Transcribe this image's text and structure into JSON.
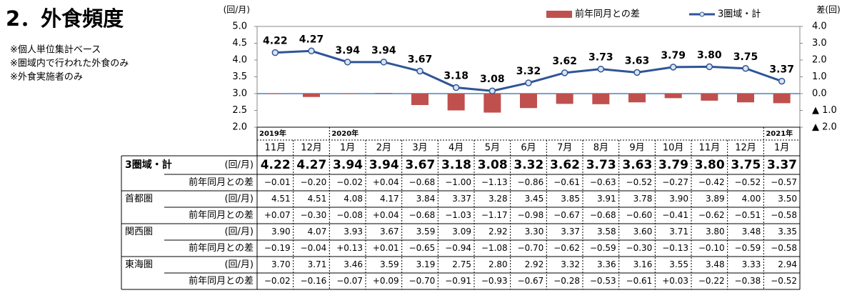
{
  "title": "2．外食頻度",
  "notes": [
    "※個人単位集計ベース",
    "※圏域内で行われた外食のみ",
    "※外食実施者のみ"
  ],
  "chart_data": {
    "type": "combo",
    "y_label": "(回/月)",
    "y2_label": "差(回)",
    "categories": [
      "11月",
      "12月",
      "1月",
      "2月",
      "3月",
      "4月",
      "5月",
      "6月",
      "7月",
      "8月",
      "9月",
      "10月",
      "11月",
      "12月",
      "1月"
    ],
    "years": [
      "2019年",
      null,
      "2020年",
      null,
      null,
      null,
      null,
      null,
      null,
      null,
      null,
      null,
      null,
      null,
      "2021年"
    ],
    "ylim": [
      2.0,
      5.0
    ],
    "yticks": [
      {
        "value": 2,
        "label": "2.0"
      },
      {
        "value": 2.5,
        "label": "2.5"
      },
      {
        "value": 3,
        "label": "3.0"
      },
      {
        "value": 3.5,
        "label": "3.5"
      },
      {
        "value": 4,
        "label": "4.0"
      },
      {
        "value": 4.5,
        "label": "4.5"
      },
      {
        "value": 5,
        "label": "5.0"
      }
    ],
    "y2lim": [
      -2.0,
      4.0
    ],
    "y2ticks": [
      {
        "value": -2,
        "label": "▲ 2.0"
      },
      {
        "value": -1,
        "label": "▲ 1.0"
      },
      {
        "value": 0,
        "label": "0.0"
      },
      {
        "value": 1,
        "label": "1.0"
      },
      {
        "value": 2,
        "label": "2.0"
      },
      {
        "value": 3,
        "label": "3.0"
      },
      {
        "value": 4,
        "label": "4.0"
      }
    ],
    "grid": false,
    "legend": "top-right",
    "series": [
      {
        "name": "前年同月との差",
        "type": "bar",
        "axis": "y2",
        "color": "#c0504d",
        "values": [
          -0.01,
          -0.2,
          -0.02,
          0.04,
          -0.68,
          -1.0,
          -1.13,
          -0.86,
          -0.61,
          -0.63,
          -0.52,
          -0.27,
          -0.42,
          -0.52,
          -0.57
        ]
      },
      {
        "name": "3圏域・計",
        "type": "line",
        "color": "#2f5597",
        "values": [
          4.22,
          4.27,
          3.94,
          3.94,
          3.67,
          3.18,
          3.08,
          3.32,
          3.62,
          3.73,
          3.63,
          3.79,
          3.8,
          3.75,
          3.37
        ],
        "value_labels": [
          "4.22",
          "4.27",
          "3.94",
          "3.94",
          "3.67",
          "3.18",
          "3.08",
          "3.32",
          "3.62",
          "3.73",
          "3.63",
          "3.79",
          "3.80",
          "3.75",
          "3.37"
        ]
      }
    ]
  },
  "table": {
    "rows": [
      {
        "label": "3圏域・計",
        "unit": "(回/月)",
        "values": [
          "4.22",
          "4.27",
          "3.94",
          "3.94",
          "3.67",
          "3.18",
          "3.08",
          "3.32",
          "3.62",
          "3.73",
          "3.63",
          "3.79",
          "3.80",
          "3.75",
          "3.37"
        ]
      },
      {
        "label": "前年同月との差",
        "values": [
          "−0.01",
          "−0.20",
          "−0.02",
          "+0.04",
          "−0.68",
          "−1.00",
          "−1.13",
          "−0.86",
          "−0.61",
          "−0.63",
          "−0.52",
          "−0.27",
          "−0.42",
          "−0.52",
          "−0.57"
        ]
      },
      {
        "label": "首都圏",
        "unit": "(回/月)",
        "values": [
          "4.51",
          "4.51",
          "4.08",
          "4.17",
          "3.84",
          "3.37",
          "3.28",
          "3.45",
          "3.85",
          "3.91",
          "3.78",
          "3.90",
          "3.89",
          "4.00",
          "3.50"
        ]
      },
      {
        "label": "前年同月との差",
        "values": [
          "+0.07",
          "−0.30",
          "−0.08",
          "+0.04",
          "−0.68",
          "−1.03",
          "−1.17",
          "−0.98",
          "−0.67",
          "−0.68",
          "−0.60",
          "−0.41",
          "−0.62",
          "−0.51",
          "−0.58"
        ]
      },
      {
        "label": "関西圏",
        "unit": "(回/月)",
        "values": [
          "3.90",
          "4.07",
          "3.93",
          "3.67",
          "3.59",
          "3.09",
          "2.92",
          "3.30",
          "3.37",
          "3.58",
          "3.60",
          "3.71",
          "3.80",
          "3.48",
          "3.35"
        ]
      },
      {
        "label": "前年同月との差",
        "values": [
          "−0.19",
          "−0.04",
          "+0.13",
          "+0.01",
          "−0.65",
          "−0.94",
          "−1.08",
          "−0.70",
          "−0.62",
          "−0.59",
          "−0.30",
          "−0.13",
          "−0.10",
          "−0.59",
          "−0.58"
        ]
      },
      {
        "label": "東海圏",
        "unit": "(回/月)",
        "values": [
          "3.70",
          "3.71",
          "3.46",
          "3.59",
          "3.19",
          "2.75",
          "2.80",
          "2.92",
          "3.32",
          "3.36",
          "3.16",
          "3.55",
          "3.48",
          "3.33",
          "2.94"
        ]
      },
      {
        "label": "前年同月との差",
        "values": [
          "−0.02",
          "−0.16",
          "−0.07",
          "+0.09",
          "−0.70",
          "−0.91",
          "−0.93",
          "−0.67",
          "−0.28",
          "−0.53",
          "−0.61",
          "+0.03",
          "−0.22",
          "−0.38",
          "−0.52"
        ]
      }
    ]
  }
}
